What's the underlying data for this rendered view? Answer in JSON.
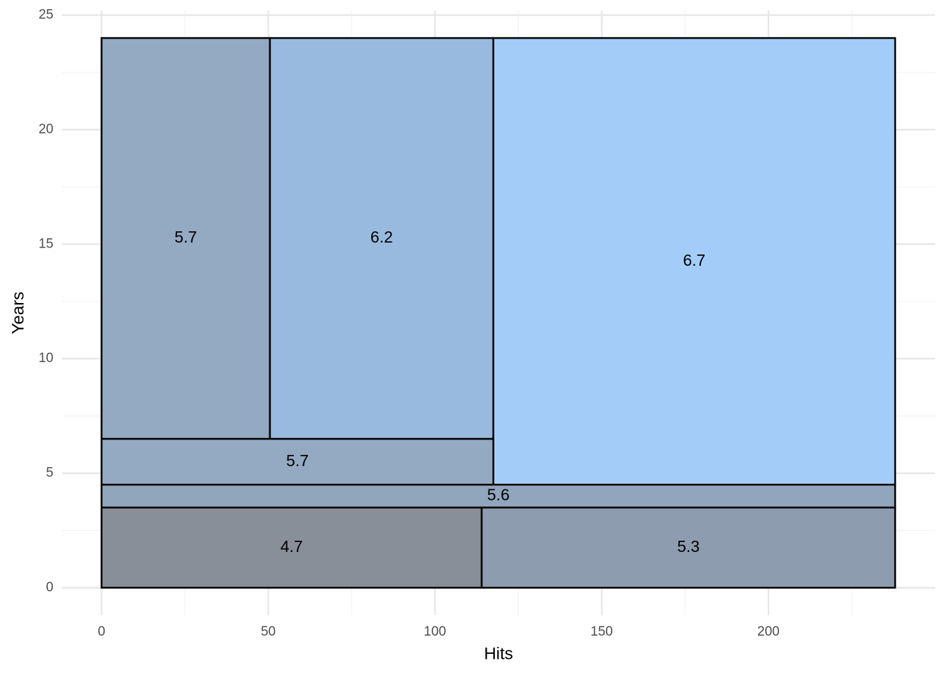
{
  "chart_data": {
    "type": "partition",
    "x_label": "Hits",
    "y_label": "Years",
    "xlim": [
      -11.9,
      250
    ],
    "ylim": [
      -1.2,
      25.2
    ],
    "xticks": [
      0,
      50,
      100,
      150,
      200
    ],
    "yticks": [
      0,
      5,
      10,
      15,
      20,
      25
    ],
    "x_minor_ticks": [
      25,
      75,
      125,
      175,
      225
    ],
    "y_minor_ticks": [
      2.5,
      7.5,
      12.5,
      17.5,
      22.5
    ],
    "grid": true,
    "regions": [
      {
        "x": [
          0,
          50.5
        ],
        "y": [
          6.5,
          24
        ],
        "value": 5.7,
        "color": "#94a9c2"
      },
      {
        "x": [
          50.5,
          117.5
        ],
        "y": [
          6.5,
          24
        ],
        "value": 6.2,
        "color": "#99badf"
      },
      {
        "x": [
          117.5,
          238
        ],
        "y": [
          4.5,
          24
        ],
        "value": 6.7,
        "color": "#a3cdf8"
      },
      {
        "x": [
          0,
          117.5
        ],
        "y": [
          4.5,
          6.5
        ],
        "value": 5.7,
        "color": "#94a9c2"
      },
      {
        "x": [
          0,
          238
        ],
        "y": [
          3.5,
          4.5
        ],
        "value": 5.6,
        "color": "#91a5bc"
      },
      {
        "x": [
          0,
          114
        ],
        "y": [
          0,
          3.5
        ],
        "value": 4.7,
        "color": "#898f99"
      },
      {
        "x": [
          114,
          238
        ],
        "y": [
          0,
          3.5
        ],
        "value": 5.3,
        "color": "#8e9cb0"
      }
    ]
  }
}
